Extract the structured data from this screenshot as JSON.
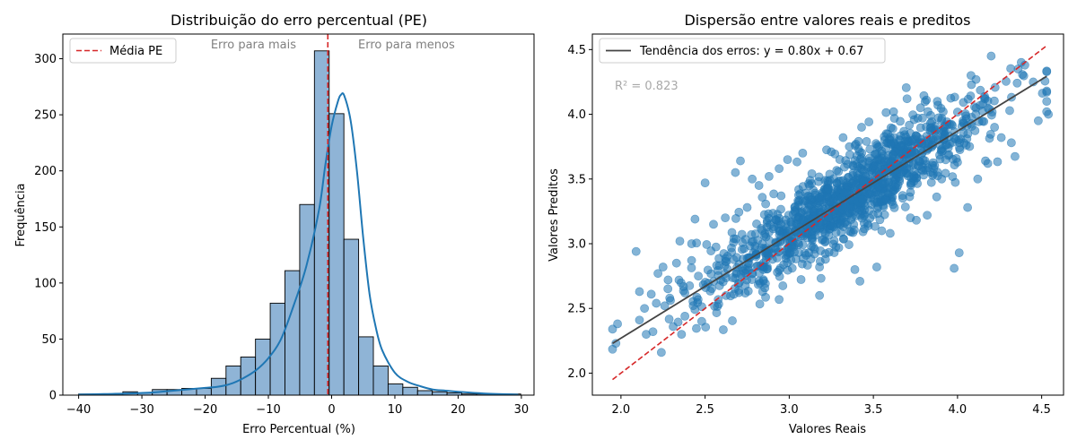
{
  "chart_data": [
    {
      "type": "bar",
      "title": "Distribuição do erro percentual (PE)",
      "xlabel": "Erro Percentual (%)",
      "ylabel": "Frequência",
      "xlim": [
        -42.5,
        32.0
      ],
      "ylim": [
        0,
        322
      ],
      "xticks": [
        -40,
        -30,
        -20,
        -10,
        0,
        10,
        20,
        30
      ],
      "yticks": [
        0,
        50,
        100,
        150,
        200,
        250,
        300
      ],
      "bin_width": 2.33,
      "bin_edges": [
        -40.0,
        -37.67,
        -35.34,
        -33.01,
        -30.68,
        -28.35,
        -26.02,
        -23.69,
        -21.36,
        -19.03,
        -16.7,
        -14.37,
        -12.04,
        -9.71,
        -7.38,
        -5.05,
        -2.72,
        -0.39,
        1.94,
        4.27,
        6.6,
        8.93,
        11.26,
        13.59,
        15.92,
        18.25,
        20.58,
        22.91,
        25.24,
        27.57,
        29.9
      ],
      "values": [
        1,
        1,
        1,
        3,
        2,
        5,
        5,
        6,
        6,
        15,
        26,
        34,
        50,
        82,
        111,
        170,
        307,
        251,
        139,
        52,
        26,
        10,
        7,
        4,
        3,
        2,
        1,
        1,
        1,
        1
      ],
      "kde": {
        "x": [
          -40,
          -36,
          -32,
          -28,
          -26,
          -24,
          -22,
          -20,
          -18,
          -16,
          -14,
          -12,
          -10,
          -8,
          -6,
          -4,
          -2,
          -1,
          0,
          1,
          1.5,
          2,
          3,
          4,
          5,
          6,
          7,
          8,
          10,
          12,
          14,
          16,
          18,
          20,
          24,
          29.5
        ],
        "y": [
          0.5,
          1,
          1.5,
          2.5,
          3.5,
          4.5,
          5.5,
          6.5,
          7.5,
          10,
          15,
          22,
          33,
          50,
          80,
          115,
          165,
          205,
          240,
          262,
          268,
          267,
          245,
          200,
          140,
          90,
          60,
          40,
          20,
          12,
          8,
          5,
          4,
          3,
          1.5,
          0.5
        ]
      },
      "mean_line": {
        "value": -0.6,
        "label": "Média PE",
        "color": "#d62728"
      },
      "annotations": {
        "left": "Erro para mais",
        "right": "Erro para menos"
      },
      "legend": "top-left",
      "colors": {
        "bars": "#7ba7cf",
        "kde": "#1f77b4"
      }
    },
    {
      "type": "scatter",
      "title": "Dispersão entre valores reais e preditos",
      "xlabel": "Valores Reais",
      "ylabel": "Valores Preditos",
      "xlim": [
        1.83,
        4.63
      ],
      "ylim": [
        1.83,
        4.62
      ],
      "xticks": [
        2.0,
        2.5,
        3.0,
        3.5,
        4.0,
        4.5
      ],
      "yticks": [
        2.0,
        2.5,
        3.0,
        3.5,
        4.0,
        4.5
      ],
      "n_points": 1200,
      "regression": {
        "slope": 0.8,
        "intercept": 0.67,
        "x_range": [
          1.95,
          4.53
        ],
        "label": "Tendência dos erros: y = 0.80x + 0.67",
        "color": "#444444"
      },
      "identity_line": {
        "x_range": [
          1.95,
          4.53
        ],
        "color": "#d62728"
      },
      "r2_text": "R² = 0.823",
      "legend": "top-left",
      "colors": {
        "points": "#1f77b4"
      },
      "points": [
        [
          1.95,
          2.34
        ],
        [
          1.97,
          2.23
        ],
        [
          2.09,
          2.94
        ],
        [
          2.11,
          2.63
        ],
        [
          2.11,
          2.41
        ],
        [
          2.14,
          2.5
        ],
        [
          2.15,
          2.3
        ],
        [
          2.18,
          2.61
        ],
        [
          2.19,
          2.32
        ],
        [
          2.21,
          2.54
        ],
        [
          2.22,
          2.77
        ],
        [
          2.24,
          2.16
        ],
        [
          2.25,
          2.82
        ],
        [
          2.26,
          2.52
        ],
        [
          2.28,
          2.72
        ],
        [
          2.29,
          2.58
        ],
        [
          2.31,
          2.36
        ],
        [
          2.33,
          2.85
        ],
        [
          2.35,
          3.02
        ],
        [
          2.36,
          2.3
        ],
        [
          2.38,
          2.62
        ],
        [
          2.38,
          2.44
        ],
        [
          2.42,
          3.0
        ],
        [
          2.44,
          3.19
        ],
        [
          2.46,
          2.75
        ],
        [
          2.48,
          2.4
        ],
        [
          2.5,
          3.47
        ],
        [
          2.55,
          3.15
        ],
        [
          2.62,
          3.2
        ],
        [
          2.68,
          3.55
        ],
        [
          2.71,
          3.64
        ],
        [
          2.75,
          3.28
        ],
        [
          2.78,
          3.5
        ],
        [
          2.82,
          3.45
        ],
        [
          2.88,
          3.52
        ],
        [
          2.94,
          3.58
        ],
        [
          2.99,
          3.65
        ],
        [
          3.08,
          3.7
        ],
        [
          3.12,
          3.45
        ],
        [
          3.15,
          2.92
        ],
        [
          3.18,
          2.82
        ],
        [
          3.18,
          2.6
        ],
        [
          3.25,
          3.71
        ],
        [
          3.32,
          3.82
        ],
        [
          3.38,
          3.6
        ],
        [
          3.39,
          2.8
        ],
        [
          3.42,
          2.71
        ],
        [
          3.43,
          3.9
        ],
        [
          3.52,
          2.82
        ],
        [
          3.55,
          3.1
        ],
        [
          3.6,
          3.08
        ],
        [
          3.62,
          4.02
        ],
        [
          3.7,
          4.12
        ],
        [
          3.72,
          3.2
        ],
        [
          3.78,
          4.05
        ],
        [
          3.82,
          3.22
        ],
        [
          3.88,
          4.1
        ],
        [
          3.92,
          3.9
        ],
        [
          3.98,
          2.81
        ],
        [
          4.01,
          2.93
        ],
        [
          4.06,
          3.28
        ],
        [
          4.08,
          4.3
        ],
        [
          4.12,
          3.5
        ],
        [
          4.18,
          3.62
        ],
        [
          4.2,
          4.45
        ],
        [
          4.22,
          3.9
        ],
        [
          4.26,
          3.82
        ],
        [
          4.32,
          3.78
        ],
        [
          4.36,
          4.35
        ],
        [
          4.4,
          4.38
        ],
        [
          4.45,
          4.25
        ],
        [
          4.48,
          3.95
        ],
        [
          4.53,
          4.1
        ],
        [
          4.53,
          4.18
        ],
        [
          4.54,
          4.0
        ],
        [
          4.53,
          4.02
        ]
      ]
    }
  ]
}
